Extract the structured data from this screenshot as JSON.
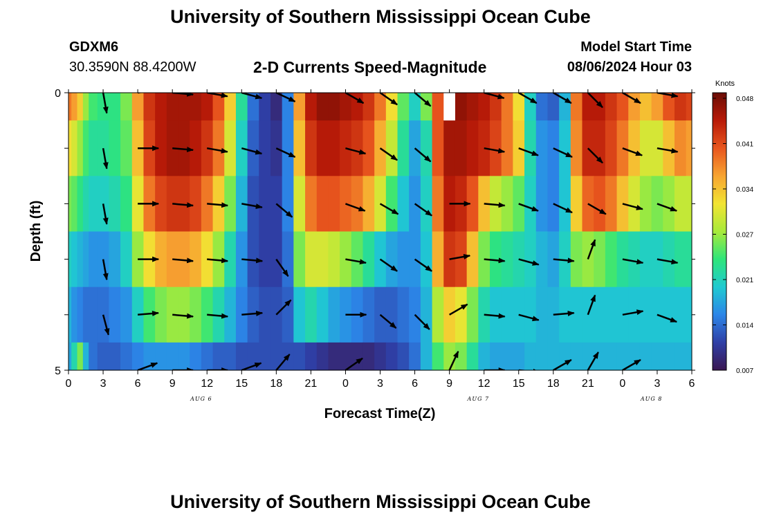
{
  "header": {
    "title": "University of Southern Mississippi Ocean Cube",
    "station_id": "GDXM6",
    "coordinates": "30.3590N  88.4200W",
    "chart_title": "2-D Currents Speed-Magnitude",
    "model_start_label": "Model Start Time",
    "model_start_value": "08/06/2024 Hour 03"
  },
  "footer": {
    "title": "University of Southern Mississippi Ocean Cube"
  },
  "chart_data": {
    "type": "heatmap",
    "title": "2-D Currents Speed-Magnitude",
    "xlabel": "Forecast Time(Z)",
    "ylabel": "Depth (ft)",
    "x_tick_labels": [
      "0",
      "3",
      "6",
      "9",
      "12",
      "15",
      "18",
      "21",
      "0",
      "3",
      "6",
      "9",
      "12",
      "15",
      "18",
      "21",
      "0",
      "3",
      "6"
    ],
    "x_range_hours": [
      0,
      54
    ],
    "date_labels": [
      {
        "text": "AUG 6",
        "hour": 11.5
      },
      {
        "text": "AUG 7",
        "hour": 35.5
      },
      {
        "text": "AUG 8",
        "hour": 50.5
      }
    ],
    "y_tick_labels": [
      {
        "text": "0",
        "depth": 0
      },
      {
        "text": "5",
        "depth": 5
      }
    ],
    "y_range": [
      0,
      5
    ],
    "depth_levels": [
      0.5,
      1.5,
      2.5,
      3.5,
      4.5,
      5.0
    ],
    "colorbar": {
      "label": "Knots",
      "ticks": [
        "0.048",
        "0.041",
        "0.034",
        "0.027",
        "0.021",
        "0.014",
        "0.007"
      ],
      "range": [
        0.007,
        0.048
      ],
      "colors": [
        "#3a1752",
        "#2f3fa6",
        "#2c86e8",
        "#1fcad1",
        "#2ee57a",
        "#a8ea3a",
        "#f2e433",
        "#f7a431",
        "#e8561e",
        "#b81a08",
        "#6a0d05"
      ]
    },
    "speed_hours": [
      0,
      0.5,
      1,
      1.5,
      2,
      3,
      4,
      5,
      6,
      7,
      8,
      9,
      10,
      11,
      12,
      13,
      14,
      15,
      16,
      17,
      18,
      19,
      20,
      21,
      22,
      23,
      24,
      25,
      26,
      27,
      28,
      29,
      30,
      31,
      32,
      33,
      34,
      35,
      36,
      37,
      38,
      39,
      40,
      41,
      42,
      43,
      44,
      45,
      46,
      47,
      48,
      49,
      50,
      51,
      52,
      53,
      54
    ],
    "speed_knots": [
      [
        0.038,
        0.036,
        0.033,
        0.027,
        0.024,
        0.023,
        0.023,
        0.026,
        0.036,
        0.042,
        0.044,
        0.045,
        0.045,
        0.045,
        0.044,
        0.04,
        0.033,
        0.022,
        0.014,
        0.011,
        0.009,
        0.015,
        0.036,
        0.044,
        0.046,
        0.046,
        0.045,
        0.044,
        0.042,
        0.038,
        0.032,
        0.025,
        0.02,
        0.026,
        0.04,
        0.046,
        0.046,
        0.045,
        0.044,
        0.042,
        0.038,
        0.032,
        0.02,
        0.014,
        0.013,
        0.018,
        0.038,
        0.044,
        0.044,
        0.042,
        0.04,
        0.036,
        0.034,
        0.036,
        0.04,
        0.042,
        0.041
      ],
      [
        0.032,
        0.03,
        0.027,
        0.024,
        0.022,
        0.022,
        0.023,
        0.025,
        0.034,
        0.041,
        0.044,
        0.045,
        0.045,
        0.044,
        0.042,
        0.038,
        0.03,
        0.02,
        0.013,
        0.011,
        0.01,
        0.015,
        0.034,
        0.042,
        0.044,
        0.044,
        0.043,
        0.042,
        0.04,
        0.035,
        0.029,
        0.022,
        0.017,
        0.021,
        0.04,
        0.045,
        0.045,
        0.044,
        0.043,
        0.041,
        0.038,
        0.033,
        0.021,
        0.016,
        0.015,
        0.019,
        0.037,
        0.043,
        0.043,
        0.041,
        0.038,
        0.034,
        0.03,
        0.03,
        0.034,
        0.037,
        0.036
      ],
      [
        0.026,
        0.025,
        0.023,
        0.021,
        0.02,
        0.02,
        0.021,
        0.023,
        0.031,
        0.038,
        0.041,
        0.042,
        0.042,
        0.041,
        0.038,
        0.033,
        0.026,
        0.018,
        0.012,
        0.011,
        0.011,
        0.015,
        0.03,
        0.038,
        0.04,
        0.04,
        0.039,
        0.038,
        0.035,
        0.03,
        0.024,
        0.019,
        0.016,
        0.02,
        0.038,
        0.044,
        0.043,
        0.04,
        0.034,
        0.029,
        0.027,
        0.025,
        0.02,
        0.016,
        0.015,
        0.019,
        0.033,
        0.039,
        0.04,
        0.038,
        0.034,
        0.03,
        0.027,
        0.026,
        0.027,
        0.029,
        0.029
      ],
      [
        0.02,
        0.019,
        0.018,
        0.017,
        0.016,
        0.016,
        0.017,
        0.02,
        0.027,
        0.032,
        0.035,
        0.036,
        0.036,
        0.035,
        0.032,
        0.027,
        0.021,
        0.016,
        0.012,
        0.011,
        0.011,
        0.014,
        0.026,
        0.03,
        0.03,
        0.029,
        0.027,
        0.025,
        0.022,
        0.019,
        0.017,
        0.016,
        0.016,
        0.019,
        0.035,
        0.042,
        0.041,
        0.034,
        0.026,
        0.023,
        0.022,
        0.021,
        0.02,
        0.018,
        0.017,
        0.02,
        0.026,
        0.027,
        0.026,
        0.024,
        0.022,
        0.021,
        0.02,
        0.02,
        0.021,
        0.022,
        0.022
      ],
      [
        0.018,
        0.016,
        0.015,
        0.014,
        0.014,
        0.014,
        0.015,
        0.016,
        0.02,
        0.024,
        0.026,
        0.027,
        0.027,
        0.026,
        0.024,
        0.021,
        0.018,
        0.015,
        0.013,
        0.012,
        0.012,
        0.013,
        0.019,
        0.021,
        0.019,
        0.017,
        0.016,
        0.015,
        0.014,
        0.013,
        0.013,
        0.014,
        0.015,
        0.018,
        0.028,
        0.033,
        0.031,
        0.026,
        0.021,
        0.019,
        0.019,
        0.019,
        0.019,
        0.018,
        0.018,
        0.019,
        0.019,
        0.019,
        0.019,
        0.019,
        0.019,
        0.019,
        0.019,
        0.019,
        0.019,
        0.019,
        0.019
      ],
      [
        0.017,
        0.021,
        0.026,
        0.018,
        0.014,
        0.013,
        0.013,
        0.014,
        0.015,
        0.016,
        0.016,
        0.016,
        0.016,
        0.015,
        0.014,
        0.013,
        0.013,
        0.012,
        0.012,
        0.012,
        0.012,
        0.012,
        0.012,
        0.011,
        0.01,
        0.009,
        0.009,
        0.009,
        0.009,
        0.01,
        0.011,
        0.012,
        0.014,
        0.018,
        0.024,
        0.027,
        0.026,
        0.022,
        0.018,
        0.017,
        0.017,
        0.017,
        0.018,
        0.018,
        0.018,
        0.018,
        0.018,
        0.018,
        0.018,
        0.018,
        0.018,
        0.018,
        0.018,
        0.018,
        0.018,
        0.018,
        0.018
      ]
    ],
    "missing": {
      "hour": 33,
      "level": 0
    },
    "vector_hours": [
      3,
      6,
      9,
      12,
      15,
      18,
      21,
      24,
      27,
      30,
      33,
      36,
      39,
      42,
      45,
      48,
      51,
      54
    ],
    "vector_dirs_deg": [
      [
        170,
        80,
        95,
        100,
        105,
        115,
        null,
        120,
        125,
        130,
        null,
        105,
        120,
        120,
        135,
        120,
        100,
        95
      ],
      [
        170,
        90,
        95,
        100,
        105,
        115,
        null,
        105,
        125,
        130,
        null,
        100,
        110,
        115,
        135,
        110,
        100,
        95
      ],
      [
        170,
        90,
        95,
        95,
        100,
        130,
        null,
        110,
        120,
        125,
        90,
        95,
        110,
        115,
        120,
        105,
        110,
        105
      ],
      [
        170,
        90,
        95,
        95,
        95,
        145,
        null,
        100,
        125,
        125,
        80,
        95,
        105,
        95,
        20,
        100,
        100,
        110
      ],
      [
        165,
        85,
        95,
        95,
        85,
        45,
        null,
        90,
        130,
        135,
        60,
        95,
        105,
        85,
        20,
        80,
        110,
        125
      ],
      [
        null,
        70,
        90,
        90,
        70,
        40,
        null,
        55,
        null,
        null,
        25,
        90,
        95,
        60,
        30,
        60,
        null,
        null
      ]
    ]
  }
}
